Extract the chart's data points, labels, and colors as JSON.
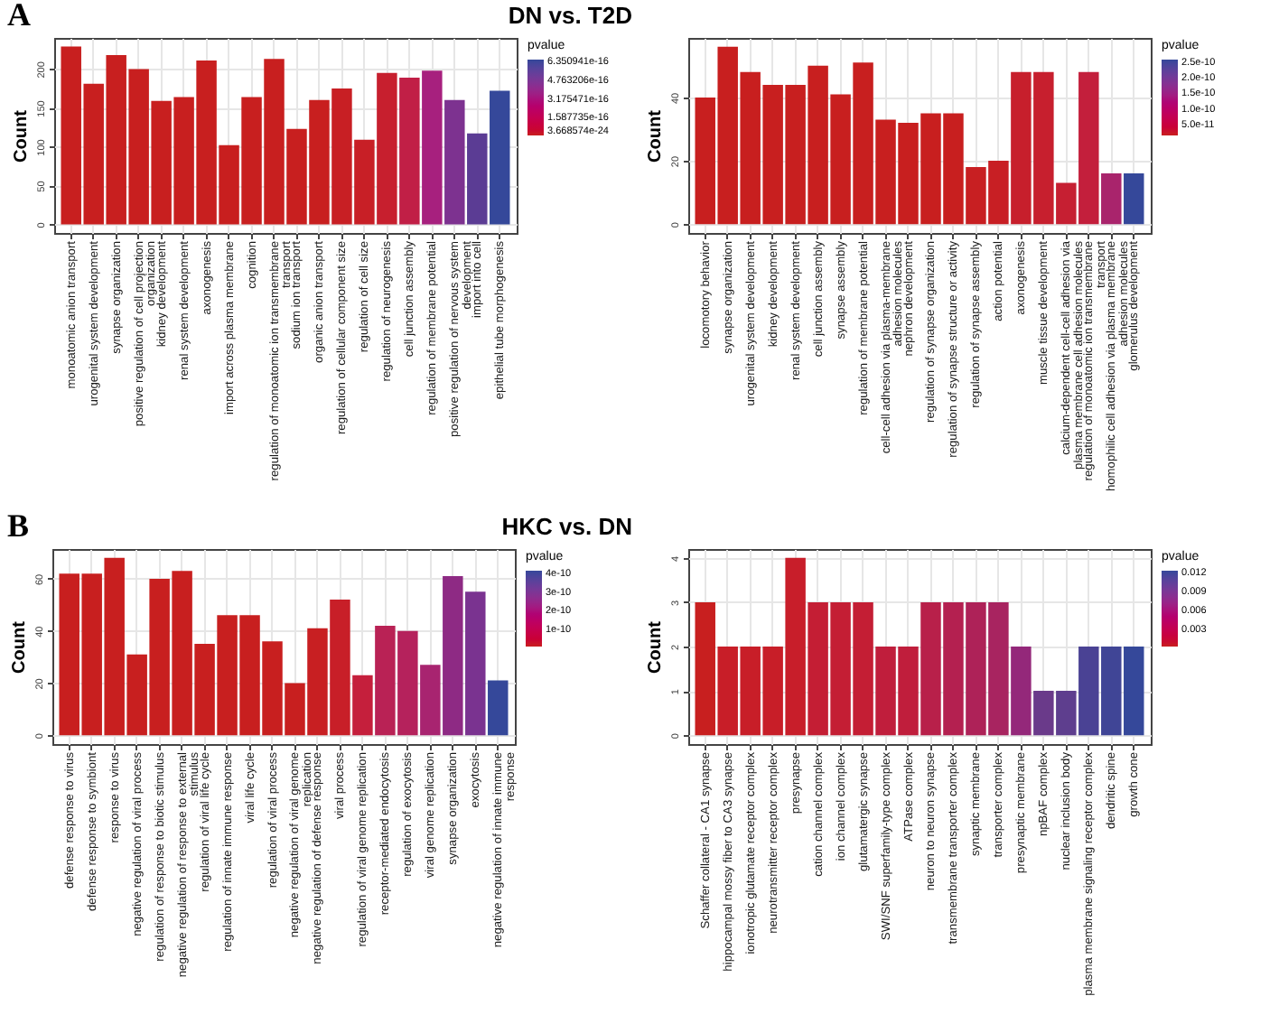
{
  "chart_data": [
    {
      "type": "bar",
      "title": "DN vs. T2D",
      "annotations": [
        "A"
      ],
      "ylabel": "Count",
      "clabel": "pvalue",
      "grid": true,
      "categories": [
        "monoatomic anion transport",
        "urogenital system development",
        "synapse organization",
        "positive regulation of cell projection organization",
        "kidney development",
        "renal system development",
        "axonogenesis",
        "import across plasma membrane",
        "cognition",
        "regulation of monoatomic ion transmembrane transport",
        "sodium ion transport",
        "organic anion transport",
        "regulation of cellular component size",
        "regulation of cell size",
        "regulation of neurogenesis",
        "cell junction assembly",
        "regulation of membrane potential",
        "positive regulation of nervous system development",
        "import into cell",
        "epithelial tube morphogenesis"
      ],
      "values": [
        229,
        181,
        218,
        200,
        159,
        164,
        211,
        102,
        164,
        213,
        123,
        160,
        175,
        109,
        195,
        189,
        198,
        160,
        117,
        172
      ],
      "colors": [
        "#c81f1f",
        "#c81f1f",
        "#c81f1f",
        "#c81f1f",
        "#c81f1f",
        "#c81f1f",
        "#c81f1f",
        "#c81f1f",
        "#c81f1f",
        "#c81f1f",
        "#c81f1f",
        "#c81f1f",
        "#c81f24",
        "#c81f26",
        "#c71f2e",
        "#c11f46",
        "#a7207e",
        "#7d3290",
        "#5b3c94",
        "#35489a"
      ],
      "ylim": [
        -11,
        240
      ],
      "yticks": [
        0,
        50,
        100,
        150,
        200
      ],
      "clim": [
        3.668574e-24,
        6.45e-16
      ],
      "cticks": [
        3.668574e-24,
        1.587735e-16,
        3.175471e-16,
        4.763206e-16,
        6.350941e-16
      ]
    },
    {
      "type": "bar",
      "ylabel": "Count",
      "clabel": "pvalue",
      "grid": true,
      "categories": [
        "locomotory behavior",
        "synapse organization",
        "urogenital system development",
        "kidney development",
        "renal system development",
        "cell junction assembly",
        "synapse assembly",
        "regulation of membrane potential",
        "cell-cell adhesion via plasma-membrane adhesion molecules",
        "nephron development",
        "regulation of synapse organization",
        "regulation of synapse structure or activity",
        "regulation of synapse assembly",
        "action potential",
        "axonogenesis",
        "muscle tissue development",
        "calcium-dependent cell-cell adhesion via plasma membrane cell adhesion molecules",
        "regulation of monoatomic ion transmembrane transport",
        "homophilic cell adhesion via plasma membrane adhesion molecules",
        "glomerulus development"
      ],
      "values": [
        40,
        56,
        48,
        44,
        44,
        50,
        41,
        51,
        33,
        32,
        35,
        35,
        18,
        20,
        48,
        48,
        13,
        48,
        16,
        16
      ],
      "colors": [
        "#c81f1f",
        "#c81f1f",
        "#c81f1f",
        "#c81f1f",
        "#c81f1f",
        "#c81f1f",
        "#c81f1f",
        "#c81f1f",
        "#c81f1f",
        "#c81f1f",
        "#c81f1f",
        "#c81f1f",
        "#c81f22",
        "#c81f24",
        "#c71f2c",
        "#c71f2e",
        "#c61f32",
        "#c31f3c",
        "#a9246c",
        "#35489a"
      ],
      "ylim": [
        -2.8,
        58.8
      ],
      "yticks": [
        0,
        20,
        40
      ],
      "clim": [
        1.3e-11,
        2.55e-10
      ],
      "cticks": [
        {
          "value": 5e-11,
          "label": "5.0e-11"
        },
        {
          "value": 1e-10,
          "label": "1.0e-10"
        },
        {
          "value": 1.5e-10,
          "label": "1.5e-10"
        },
        {
          "value": 2e-10,
          "label": "2.0e-10"
        },
        {
          "value": 2.5e-10,
          "label": "2.5e-10"
        }
      ]
    },
    {
      "type": "bar",
      "title": "HKC vs. DN",
      "annotations": [
        "B"
      ],
      "ylabel": "Count",
      "clabel": "pvalue",
      "grid": true,
      "categories": [
        "defense response to virus",
        "defense response to symbiont",
        "response to virus",
        "negative regulation of viral process",
        "regulation of response to biotic stimulus",
        "negative regulation of response to external stimulus",
        "regulation of viral life cycle",
        "regulation of innate immune response",
        "viral life cycle",
        "regulation of viral process",
        "negative regulation of viral genome replication",
        "negative regulation of defense response",
        "viral process",
        "regulation of viral genome replication",
        "receptor-mediated endocytosis",
        "regulation of exocytosis",
        "viral genome replication",
        "synapse organization",
        "exocytosis",
        "negative regulation of innate immune response"
      ],
      "values": [
        62,
        62,
        68,
        31,
        60,
        63,
        35,
        46,
        46,
        36,
        20,
        41,
        52,
        23,
        42,
        40,
        27,
        61,
        55,
        21
      ],
      "colors": [
        "#c81f1f",
        "#c81f1f",
        "#c81f1f",
        "#c81f1f",
        "#c81f1f",
        "#c81f1f",
        "#c81f1f",
        "#c81f1f",
        "#c81f1f",
        "#c81f1f",
        "#c81f1f",
        "#c81f22",
        "#c81f28",
        "#c51f3c",
        "#b92255",
        "#b5225c",
        "#a82470",
        "#8e2a84",
        "#7a3390",
        "#35489a"
      ],
      "ylim": [
        -3.4,
        71.4
      ],
      "yticks": [
        0,
        20,
        40,
        60
      ],
      "clim": [
        0,
        4.1e-10
      ],
      "cticks": [
        1e-10,
        2e-10,
        3e-10,
        4e-10
      ]
    },
    {
      "type": "bar",
      "ylabel": "Count",
      "clabel": "pvalue",
      "grid": true,
      "categories": [
        "Schaffer collateral - CA1 synapse",
        "hippocampal mossy fiber to CA3 synapse",
        "ionotropic glutamate receptor complex",
        "neurotransmitter receptor complex",
        "presynapse",
        "cation channel complex",
        "ion channel complex",
        "glutamatergic synapse",
        "SWI/SNF superfamily-type complex",
        "ATPase complex",
        "neuron to neuron synapse",
        "transmembrane transporter complex",
        "synaptic membrane",
        "transporter complex",
        "presynaptic membrane",
        "npBAF complex",
        "nuclear inclusion body",
        "plasma membrane signaling receptor complex",
        "dendritic spine",
        "growth cone"
      ],
      "values": [
        3,
        2,
        2,
        2,
        4,
        3,
        3,
        3,
        2,
        2,
        3,
        3,
        3,
        3,
        2,
        1,
        1,
        2,
        2,
        2
      ],
      "colors": [
        "#c81f1f",
        "#c81e28",
        "#c81e28",
        "#c81e28",
        "#c81e2a",
        "#c41e34",
        "#c41e34",
        "#c41e34",
        "#c01e3c",
        "#c01e3c",
        "#b8204a",
        "#b42050",
        "#ae2258",
        "#a82460",
        "#94287a",
        "#6a3a8a",
        "#5e3e8e",
        "#4a4294",
        "#404596",
        "#35489a"
      ],
      "ylim": [
        -0.2,
        4.2
      ],
      "yticks": [
        0,
        1,
        2,
        3,
        4
      ],
      "clim": [
        0.0002,
        0.0122
      ],
      "cticks": [
        0.003,
        0.006,
        0.009,
        0.012
      ]
    }
  ]
}
